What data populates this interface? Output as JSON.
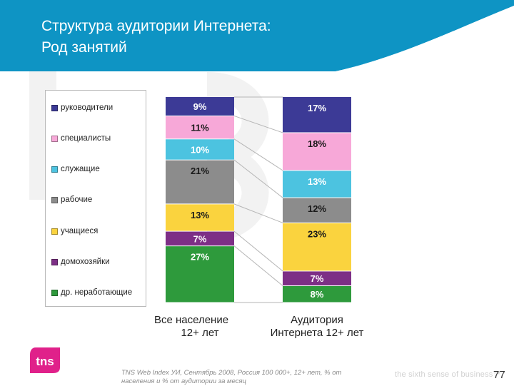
{
  "header": {
    "title_line1": "Структура аудитории Интернета:",
    "title_line2": "Род занятий",
    "bg_color": "#0e94c4"
  },
  "legend": [
    {
      "label": "руководители",
      "color": "#3c3a96"
    },
    {
      "label": "специалисты",
      "color": "#f7a8d8"
    },
    {
      "label": "служащие",
      "color": "#4cc3e0"
    },
    {
      "label": "рабочие",
      "color": "#8c8c8c"
    },
    {
      "label": "учащиеся",
      "color": "#fad33e"
    },
    {
      "label": "домохозяйки",
      "color": "#7d2f86"
    },
    {
      "label": "др. неработающие",
      "color": "#2e9a3c"
    }
  ],
  "chart_data": {
    "type": "bar",
    "stacked": true,
    "normalized_percent": true,
    "categories": [
      "Все население\n12+ лет",
      "Аудитория\nИнтернета 12+ лет"
    ],
    "series": [
      {
        "name": "руководители",
        "values": [
          9,
          17
        ],
        "labels": [
          "9%",
          "17%"
        ],
        "color": "#3c3a96"
      },
      {
        "name": "специалисты",
        "values": [
          11,
          18
        ],
        "labels": [
          "11%",
          "18%"
        ],
        "color": "#f7a8d8"
      },
      {
        "name": "служащие",
        "values": [
          10,
          13
        ],
        "labels": [
          "10%",
          "13%"
        ],
        "color": "#4cc3e0"
      },
      {
        "name": "рабочие",
        "values": [
          21,
          12
        ],
        "labels": [
          "21%",
          "12%"
        ],
        "color": "#8c8c8c"
      },
      {
        "name": "учащиеся",
        "values": [
          13,
          23
        ],
        "labels": [
          "13%",
          "23%"
        ],
        "color": "#fad33e"
      },
      {
        "name": "домохозяйки",
        "values": [
          7,
          7
        ],
        "labels": [
          "7%",
          "7%"
        ],
        "color": "#7d2f86"
      },
      {
        "name": "др. неработающие",
        "values": [
          27,
          8
        ],
        "labels": [
          "27%",
          "8%"
        ],
        "color": "#2e9a3c"
      }
    ],
    "label_colors": [
      [
        "#ffffff",
        "#ffffff"
      ],
      [
        "#1a1a1a",
        "#1a1a1a"
      ],
      [
        "#ffffff",
        "#ffffff"
      ],
      [
        "#1a1a1a",
        "#1a1a1a"
      ],
      [
        "#1a1a1a",
        "#1a1a1a"
      ],
      [
        "#ffffff",
        "#ffffff"
      ],
      [
        "#ffffff",
        "#ffffff"
      ]
    ],
    "grid": false,
    "legend_position": "left"
  },
  "footer": {
    "source": "TNS Web Index УИ, Сентябрь 2008, Россия 100 000+, 12+ лет, % от населения и % от аудитории за месяц",
    "slogan": "the sixth sense of business™",
    "page_number": "77",
    "logo_text": "tns"
  }
}
